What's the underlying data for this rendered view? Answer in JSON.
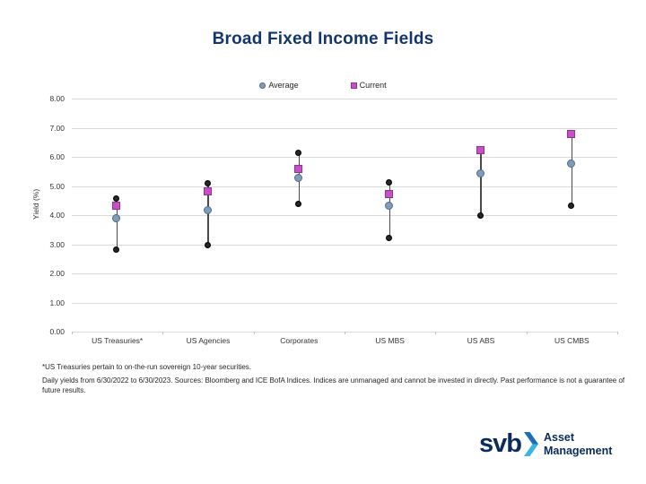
{
  "title": "Broad Fixed Income Fields",
  "legend": [
    {
      "label": "Average",
      "shape": "circle",
      "fill": "#7f9cba",
      "border": "#4f6e8e"
    },
    {
      "label": "Current",
      "shape": "square",
      "fill": "#c94ec9",
      "border": "#8e3390"
    }
  ],
  "chart_data": {
    "type": "scatter",
    "title": "Broad Fixed Income Fields",
    "xlabel": "",
    "ylabel": "Yield (%)",
    "ylim": [
      0,
      8
    ],
    "ytick_step": 1,
    "grid": true,
    "legend_position": "top-center",
    "categories": [
      "US Treasuries*",
      "US Agencies",
      "Corporates",
      "US MBS",
      "US ABS",
      "US CMBS"
    ],
    "series": [
      {
        "name": "Range Low",
        "marker": "black-dot",
        "values": [
          2.8,
          2.95,
          4.35,
          3.2,
          3.95,
          4.3
        ]
      },
      {
        "name": "Range High",
        "marker": "black-dot",
        "values": [
          4.55,
          5.05,
          6.1,
          5.1,
          6.2,
          6.8
        ]
      },
      {
        "name": "Average",
        "marker": "blue-circle",
        "values": [
          3.85,
          4.15,
          5.25,
          4.3,
          5.4,
          5.75
        ]
      },
      {
        "name": "Current",
        "marker": "magenta-square",
        "values": [
          4.3,
          4.8,
          5.55,
          4.7,
          6.2,
          6.75
        ]
      }
    ]
  },
  "footnotes": [
    "*US Treasuries pertain to on-the-run sovereign 10-year securities.",
    "Daily yields from 6/30/2022 to 6/30/2023. Sources: Bloomberg and ICE BofA Indices. Indices are unmanaged and cannot be invested in directly. Past performance is not a guarantee of future results."
  ],
  "logo": {
    "brand": "svb",
    "line1": "Asset",
    "line2": "Management"
  },
  "colors": {
    "title": "#14366e",
    "average_fill": "#7f9cba",
    "average_border": "#4f6e8e",
    "current_fill": "#c94ec9",
    "current_border": "#8e3390",
    "minmax_dot": "#262626",
    "range_line": "#4a4a4a",
    "gridline": "#d9d9d9",
    "logo_navy": "#0a2b5c",
    "logo_chevron_top": "#1b6fb3",
    "logo_chevron_bottom": "#3ab5e9"
  }
}
